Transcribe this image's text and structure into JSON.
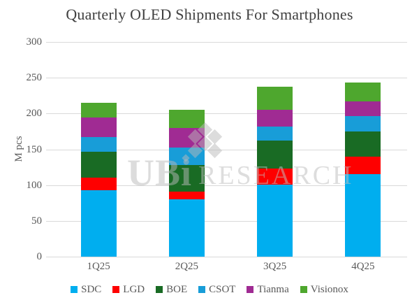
{
  "title": "Quarterly OLED Shipments For Smartphones",
  "watermark": {
    "left": "UBi",
    "right": "RESEARCH"
  },
  "chart_data": {
    "type": "bar",
    "stacked": true,
    "title": "Quarterly OLED Shipments For Smartphones",
    "ylabel": "M pcs",
    "xlabel": "",
    "ylim": [
      0,
      300
    ],
    "yticks": [
      0,
      50,
      100,
      150,
      200,
      250,
      300
    ],
    "grid": true,
    "legend_position": "bottom",
    "categories": [
      "1Q25",
      "2Q25",
      "3Q25",
      "4Q25"
    ],
    "series": [
      {
        "name": "SDC",
        "color": "#00AEEF",
        "values": [
          93,
          80,
          101,
          115
        ]
      },
      {
        "name": "LGD",
        "color": "#FE0000",
        "values": [
          17,
          11,
          22,
          25
        ]
      },
      {
        "name": "BOE",
        "color": "#196B24",
        "values": [
          37,
          37,
          39,
          35
        ]
      },
      {
        "name": "CSOT",
        "color": "#189DD8",
        "values": [
          20,
          24,
          20,
          21
        ]
      },
      {
        "name": "Tianma",
        "color": "#A02B93",
        "values": [
          27,
          28,
          23,
          21
        ]
      },
      {
        "name": "Visionox",
        "color": "#4EA72E",
        "values": [
          21,
          25,
          32,
          26
        ]
      }
    ],
    "totals": [
      215,
      205,
      237,
      243
    ]
  }
}
